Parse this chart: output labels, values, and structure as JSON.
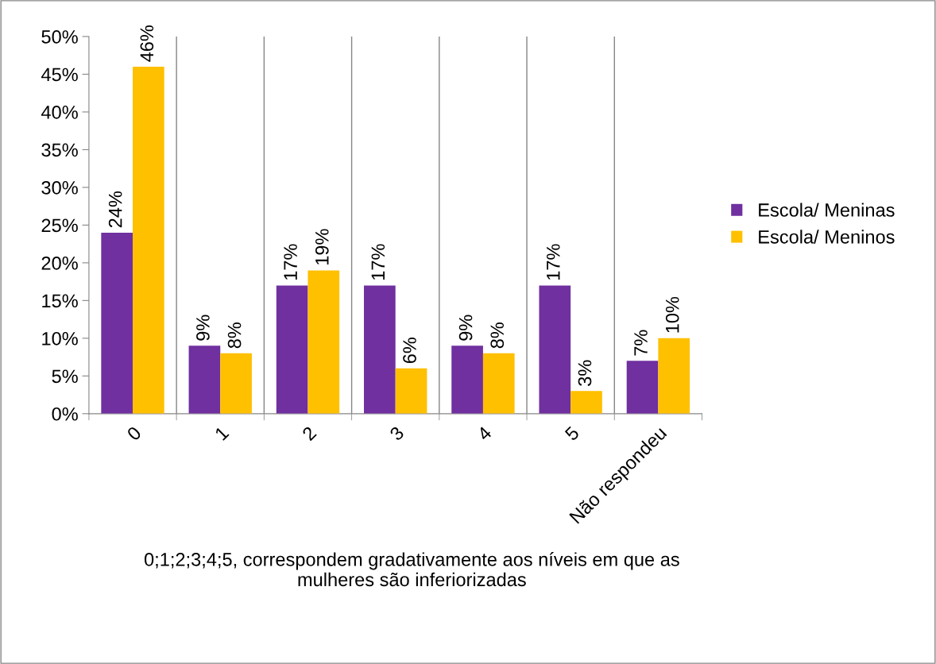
{
  "chart_data": {
    "type": "bar",
    "xlabel": "0;1;2;3;4;5, correspondem gradativamente aos níveis em que as\nmulheres são inferiorizadas",
    "categories": [
      "0",
      "1",
      "2",
      "3",
      "4",
      "5",
      "Não respondeu"
    ],
    "series": [
      {
        "name": "Escola/ Meninas",
        "color": "#7030a0",
        "values": [
          24,
          9,
          17,
          17,
          9,
          17,
          7
        ],
        "value_labels": [
          "24%",
          "9%",
          "17%",
          "17%",
          "9%",
          "17%",
          "7%"
        ]
      },
      {
        "name": "Escola/ Meninos",
        "color": "#ffc000",
        "values": [
          46,
          8,
          19,
          6,
          8,
          3,
          10
        ],
        "value_labels": [
          "46%",
          "8%",
          "19%",
          "6%",
          "8%",
          "3%",
          "10%"
        ]
      }
    ],
    "ylim": [
      0,
      50
    ],
    "yticks": [
      {
        "value": 0,
        "label": "0%"
      },
      {
        "value": 5,
        "label": "5%"
      },
      {
        "value": 10,
        "label": "10%"
      },
      {
        "value": 15,
        "label": "15%"
      },
      {
        "value": 20,
        "label": "20%"
      },
      {
        "value": 25,
        "label": "25%"
      },
      {
        "value": 30,
        "label": "30%"
      },
      {
        "value": 35,
        "label": "35%"
      },
      {
        "value": 40,
        "label": "40%"
      },
      {
        "value": 45,
        "label": "45%"
      },
      {
        "value": 50,
        "label": "50%"
      }
    ],
    "grid": "x",
    "legend": "right"
  }
}
